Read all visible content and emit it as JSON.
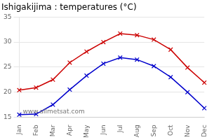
{
  "chart_data": {
    "type": "line",
    "title": "Ishigakijima : temperatures (°C)",
    "categories": [
      "Jan",
      "Feb",
      "Mar",
      "Apr",
      "May",
      "Jun",
      "Jul",
      "Aug",
      "Sep",
      "Oct",
      "Nov",
      "Dec"
    ],
    "series": [
      {
        "color": "#cc0000",
        "marker": "x",
        "values": [
          20.4,
          20.9,
          22.5,
          25.9,
          28.1,
          30.0,
          31.7,
          31.4,
          30.5,
          28.5,
          24.9,
          21.9
        ]
      },
      {
        "color": "#0000cc",
        "marker": "x",
        "values": [
          15.5,
          15.6,
          17.5,
          20.5,
          23.3,
          25.7,
          26.9,
          26.5,
          25.2,
          23.0,
          20.0,
          16.8
        ]
      }
    ],
    "ylim": [
      15,
      35
    ],
    "yticks": [
      15,
      20,
      25,
      30,
      35
    ],
    "grid": "y",
    "annotations": [
      "www.allmetsat.com"
    ]
  }
}
